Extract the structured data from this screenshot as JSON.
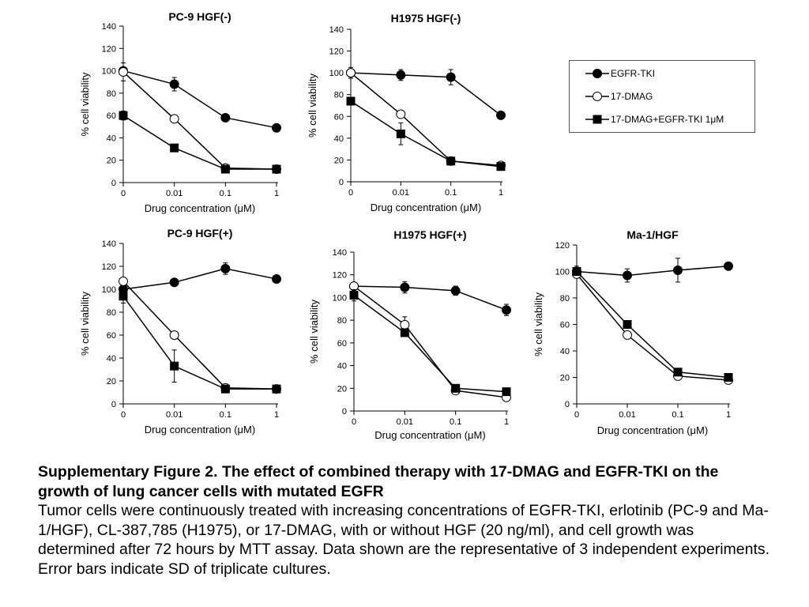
{
  "chart_data": [
    {
      "type": "line",
      "title": "PC-9 HGF(-)",
      "xlabel": "Drug concentration (μM)",
      "ylabel": "% cell viability",
      "categories": [
        "0",
        "0.01",
        "0.1",
        "1"
      ],
      "ylim": [
        0,
        140
      ],
      "yticks": [
        "0",
        "20",
        "40",
        "60",
        "80",
        "100",
        "120",
        "140"
      ],
      "series": [
        {
          "name": "EGFR-TKI",
          "values": [
            100,
            88,
            58,
            49
          ],
          "err": [
            3,
            6,
            0,
            0
          ]
        },
        {
          "name": "17-DMAG",
          "values": [
            99,
            57,
            13,
            12
          ],
          "err": [
            8,
            0,
            2,
            0
          ]
        },
        {
          "name": "17-DMAG+EGFR-TKI 1μM",
          "values": [
            60,
            31,
            12,
            12
          ],
          "err": [
            4,
            0,
            1,
            2
          ]
        }
      ]
    },
    {
      "type": "line",
      "title": "H1975 HGF(-)",
      "xlabel": "Drug concentration (μM)",
      "ylabel": "% cell viability",
      "categories": [
        "0",
        "0.01",
        "0.1",
        "1"
      ],
      "ylim": [
        0,
        140
      ],
      "yticks": [
        "0",
        "20",
        "40",
        "60",
        "80",
        "100",
        "120",
        "140"
      ],
      "series": [
        {
          "name": "EGFR-TKI",
          "values": [
            100,
            98,
            96,
            61
          ],
          "err": [
            5,
            5,
            7,
            3
          ]
        },
        {
          "name": "17-DMAG",
          "values": [
            100,
            62,
            19,
            15
          ],
          "err": [
            3,
            3,
            0,
            2
          ]
        },
        {
          "name": "17-DMAG+EGFR-TKI 1μM",
          "values": [
            74,
            44,
            19,
            14
          ],
          "err": [
            2,
            10,
            0,
            1
          ]
        }
      ]
    },
    {
      "type": "line",
      "title": "PC-9 HGF(+)",
      "xlabel": "Drug concentration (μM)",
      "ylabel": "% cell viability",
      "categories": [
        "0",
        "0.01",
        "0.1",
        "1"
      ],
      "ylim": [
        0,
        140
      ],
      "yticks": [
        "0",
        "20",
        "40",
        "60",
        "80",
        "100",
        "120",
        "140"
      ],
      "series": [
        {
          "name": "EGFR-TKI",
          "values": [
            100,
            106,
            118,
            109
          ],
          "err": [
            0,
            0,
            5,
            0
          ]
        },
        {
          "name": "17-DMAG",
          "values": [
            107,
            60,
            14,
            13
          ],
          "err": [
            0,
            0,
            0,
            0
          ]
        },
        {
          "name": "17-DMAG+EGFR-TKI 1μM",
          "values": [
            94,
            33,
            13,
            13
          ],
          "err": [
            6,
            14,
            2,
            2
          ]
        }
      ]
    },
    {
      "type": "line",
      "title": "H1975 HGF(+)",
      "xlabel": "Drug concentration (μM)",
      "ylabel": "% cell viability",
      "categories": [
        "0",
        "0.01",
        "0.1",
        "1"
      ],
      "ylim": [
        0,
        140
      ],
      "yticks": [
        "0",
        "20",
        "40",
        "60",
        "80",
        "100",
        "120",
        "140"
      ],
      "series": [
        {
          "name": "EGFR-TKI",
          "values": [
            110,
            109,
            106,
            89
          ],
          "err": [
            0,
            5,
            4,
            5
          ]
        },
        {
          "name": "17-DMAG",
          "values": [
            110,
            76,
            18,
            12
          ],
          "err": [
            0,
            7,
            2,
            2
          ]
        },
        {
          "name": "17-DMAG+EGFR-TKI 1μM",
          "values": [
            102,
            69,
            20,
            17
          ],
          "err": [
            5,
            3,
            2,
            1
          ]
        }
      ]
    },
    {
      "type": "line",
      "title": "Ma-1/HGF",
      "xlabel": "Drug concentration (μM)",
      "ylabel": "% cell viability",
      "categories": [
        "0",
        "0.01",
        "0.1",
        "1"
      ],
      "ylim": [
        0,
        120
      ],
      "yticks": [
        "0",
        "20",
        "40",
        "60",
        "80",
        "100",
        "120"
      ],
      "series": [
        {
          "name": "EGFR-TKI",
          "values": [
            100,
            97,
            101,
            104
          ],
          "err": [
            4,
            5,
            9,
            2
          ]
        },
        {
          "name": "17-DMAG",
          "values": [
            98,
            52,
            21,
            18
          ],
          "err": [
            0,
            0,
            2,
            1
          ]
        },
        {
          "name": "17-DMAG+EGFR-TKI 1μM",
          "values": [
            100,
            60,
            24,
            20
          ],
          "err": [
            3,
            2,
            1,
            1
          ]
        }
      ]
    }
  ],
  "legend": {
    "items": [
      {
        "label": "EGFR-TKI",
        "marker": "filled-circle"
      },
      {
        "label": "17-DMAG",
        "marker": "open-circle"
      },
      {
        "label": "17-DMAG+EGFR-TKI 1μM",
        "marker": "filled-square"
      }
    ]
  },
  "caption": {
    "title": "Supplementary Figure 2. The effect of combined therapy with 17-DMAG and EGFR-TKI on the growth of lung cancer cells with mutated EGFR",
    "body": "Tumor cells were continuously treated with increasing concentrations of EGFR-TKI, erlotinib (PC-9 and Ma-1/HGF), CL-387,785 (H1975), or 17-DMAG, with or without HGF (20 ng/ml), and cell growth was determined after 72 hours by MTT assay. Data shown are the representative of 3 independent experiments. Error bars indicate SD of triplicate cultures."
  }
}
